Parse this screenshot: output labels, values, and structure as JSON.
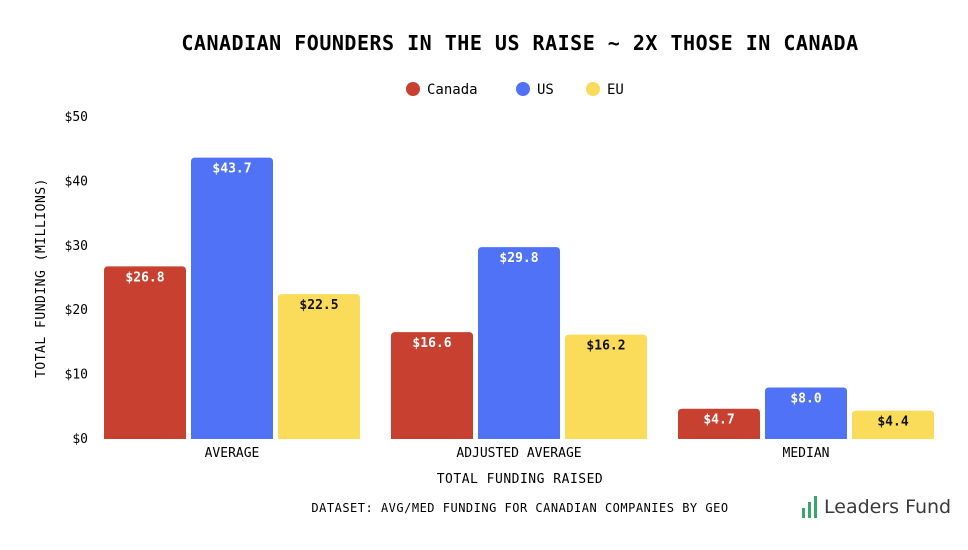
{
  "chart_data": {
    "type": "bar",
    "title": "CANADIAN FOUNDERS IN THE US RAISE ~ 2X THOSE IN CANADA",
    "categories": [
      "AVERAGE",
      "ADJUSTED AVERAGE",
      "MEDIAN"
    ],
    "series": [
      {
        "name": "Canada",
        "color": "#c8402f",
        "label_color": "#ffffff",
        "values": [
          26.8,
          16.6,
          4.7
        ],
        "labels": [
          "$26.8",
          "$16.6",
          "$4.7"
        ]
      },
      {
        "name": "US",
        "color": "#4f72f7",
        "label_color": "#ffffff",
        "values": [
          43.7,
          29.8,
          8.0
        ],
        "labels": [
          "$43.7",
          "$29.8",
          "$8.0"
        ]
      },
      {
        "name": "EU",
        "color": "#fbdb5a",
        "label_color": "#111111",
        "values": [
          22.5,
          16.2,
          4.4
        ],
        "labels": [
          "$22.5",
          "$16.2",
          "$4.4"
        ]
      }
    ],
    "ylim": [
      0,
      50
    ],
    "yticks": [
      0,
      10,
      20,
      30,
      40,
      50
    ],
    "ytick_labels": [
      "$0",
      "$10",
      "$20",
      "$30",
      "$40",
      "$50"
    ],
    "xlabel": "TOTAL FUNDING RAISED",
    "ylabel": "TOTAL FUNDING (MILLIONS)",
    "legend_position": "top-center",
    "grid": false
  },
  "footer": {
    "dataset": "DATASET: AVG/MED FUNDING FOR CANADIAN COMPANIES BY GEO",
    "brand": "Leaders Fund",
    "brand_icon": "bar-chart-icon",
    "brand_color": "#3aa56a"
  }
}
